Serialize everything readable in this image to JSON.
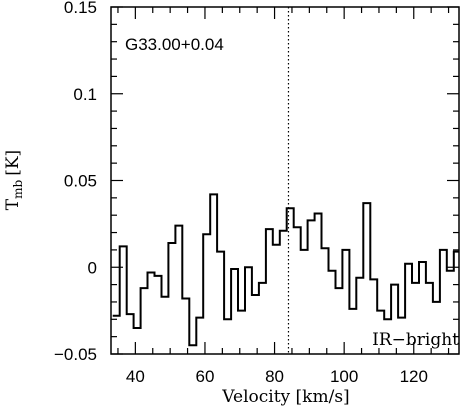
{
  "chart_data": {
    "type": "line",
    "style": "step",
    "title": "",
    "xlabel": "Velocity [km/s]",
    "ylabel_main": "T",
    "ylabel_sub": "mb",
    "ylabel_unit": "[K]",
    "xlim": [
      33,
      133
    ],
    "ylim": [
      -0.05,
      0.15
    ],
    "xticks": [
      40,
      60,
      80,
      100,
      120
    ],
    "xtick_labels": [
      "40",
      "60",
      "80",
      "100",
      "120"
    ],
    "yticks": [
      -0.05,
      0,
      0.05,
      0.1,
      0.15
    ],
    "ytick_labels": [
      "−0.05",
      "0",
      "0.05",
      "0.1",
      "0.15"
    ],
    "grid": false,
    "annotations": {
      "source": "G33.00+0.04",
      "classification": "IR−bright"
    },
    "marker_line_x": 84.0,
    "x": [
      34.5,
      36.5,
      38.5,
      40.5,
      42.5,
      44.5,
      46.5,
      48.5,
      50.5,
      52.5,
      54.5,
      56.5,
      58.5,
      60.5,
      62.5,
      64.5,
      66.5,
      68.5,
      70.5,
      72.5,
      74.5,
      76.5,
      78.5,
      80.5,
      82.5,
      84.5,
      86.5,
      88.5,
      90.5,
      92.5,
      94.5,
      96.5,
      98.5,
      100.5,
      102.5,
      104.5,
      106.5,
      108.5,
      110.5,
      112.5,
      114.5,
      116.5,
      118.5,
      120.5,
      122.5,
      124.5,
      126.5,
      128.5,
      130.5,
      132.5
    ],
    "series": [
      {
        "values": [
          -0.028,
          0.012,
          -0.027,
          -0.035,
          -0.012,
          -0.003,
          -0.005,
          -0.017,
          0.014,
          0.024,
          -0.018,
          -0.045,
          -0.029,
          0.019,
          0.042,
          0.009,
          -0.03,
          -0.001,
          -0.025,
          0.0,
          -0.016,
          -0.009,
          0.022,
          0.013,
          0.021,
          0.034,
          0.023,
          0.01,
          0.027,
          0.031,
          0.011,
          -0.002,
          -0.012,
          0.01,
          -0.024,
          -0.006,
          0.037,
          -0.007,
          -0.025,
          -0.03,
          -0.01,
          -0.029,
          0.002,
          -0.009,
          0.003,
          -0.009,
          -0.02,
          0.01,
          -0.002,
          0.009
        ]
      }
    ]
  }
}
